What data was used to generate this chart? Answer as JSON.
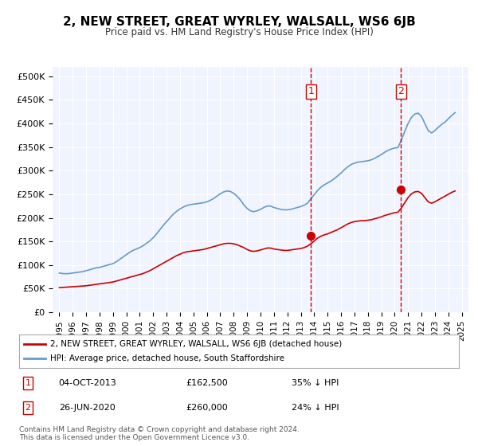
{
  "title": "2, NEW STREET, GREAT WYRLEY, WALSALL, WS6 6JB",
  "subtitle": "Price paid vs. HM Land Registry's House Price Index (HPI)",
  "legend_line1": "2, NEW STREET, GREAT WYRLEY, WALSALL, WS6 6JB (detached house)",
  "legend_line2": "HPI: Average price, detached house, South Staffordshire",
  "footer": "Contains HM Land Registry data © Crown copyright and database right 2024.\nThis data is licensed under the Open Government Licence v3.0.",
  "annotation1": {
    "label": "1",
    "date_str": "04-OCT-2013",
    "price": 162500,
    "note": "35% ↓ HPI",
    "x_year": 2013.75
  },
  "annotation2": {
    "label": "2",
    "date_str": "26-JUN-2020",
    "price": 260000,
    "note": "24% ↓ HPI",
    "x_year": 2020.48
  },
  "red_line_color": "#cc0000",
  "blue_line_color": "#6699cc",
  "vline_color": "#cc0000",
  "background_color": "#ffffff",
  "plot_bg_color": "#f0f4ff",
  "grid_color": "#ffffff",
  "ylim": [
    0,
    520000
  ],
  "xlim_start": 1994.5,
  "xlim_end": 2025.5,
  "yticks": [
    0,
    50000,
    100000,
    150000,
    200000,
    250000,
    300000,
    350000,
    400000,
    450000,
    500000
  ],
  "ytick_labels": [
    "£0",
    "£50K",
    "£100K",
    "£150K",
    "£200K",
    "£250K",
    "£300K",
    "£350K",
    "£400K",
    "£450K",
    "£500K"
  ],
  "xticks": [
    1995,
    1996,
    1997,
    1998,
    1999,
    2000,
    2001,
    2002,
    2003,
    2004,
    2005,
    2006,
    2007,
    2008,
    2009,
    2010,
    2011,
    2012,
    2013,
    2014,
    2015,
    2016,
    2017,
    2018,
    2019,
    2020,
    2021,
    2022,
    2023,
    2024,
    2025
  ],
  "hpi_years": [
    1995.0,
    1995.25,
    1995.5,
    1995.75,
    1996.0,
    1996.25,
    1996.5,
    1996.75,
    1997.0,
    1997.25,
    1997.5,
    1997.75,
    1998.0,
    1998.25,
    1998.5,
    1998.75,
    1999.0,
    1999.25,
    1999.5,
    1999.75,
    2000.0,
    2000.25,
    2000.5,
    2000.75,
    2001.0,
    2001.25,
    2001.5,
    2001.75,
    2002.0,
    2002.25,
    2002.5,
    2002.75,
    2003.0,
    2003.25,
    2003.5,
    2003.75,
    2004.0,
    2004.25,
    2004.5,
    2004.75,
    2005.0,
    2005.25,
    2005.5,
    2005.75,
    2006.0,
    2006.25,
    2006.5,
    2006.75,
    2007.0,
    2007.25,
    2007.5,
    2007.75,
    2008.0,
    2008.25,
    2008.5,
    2008.75,
    2009.0,
    2009.25,
    2009.5,
    2009.75,
    2010.0,
    2010.25,
    2010.5,
    2010.75,
    2011.0,
    2011.25,
    2011.5,
    2011.75,
    2012.0,
    2012.25,
    2012.5,
    2012.75,
    2013.0,
    2013.25,
    2013.5,
    2013.75,
    2014.0,
    2014.25,
    2014.5,
    2014.75,
    2015.0,
    2015.25,
    2015.5,
    2015.75,
    2016.0,
    2016.25,
    2016.5,
    2016.75,
    2017.0,
    2017.25,
    2017.5,
    2017.75,
    2018.0,
    2018.25,
    2018.5,
    2018.75,
    2019.0,
    2019.25,
    2019.5,
    2019.75,
    2020.0,
    2020.25,
    2020.5,
    2020.75,
    2021.0,
    2021.25,
    2021.5,
    2021.75,
    2022.0,
    2022.25,
    2022.5,
    2022.75,
    2023.0,
    2023.25,
    2023.5,
    2023.75,
    2024.0,
    2024.25,
    2024.5
  ],
  "hpi_values": [
    83000,
    82000,
    81500,
    82000,
    83000,
    84000,
    85000,
    86000,
    88000,
    90000,
    92000,
    94000,
    95000,
    97000,
    99000,
    101000,
    103000,
    107000,
    112000,
    117000,
    122000,
    127000,
    131000,
    134000,
    137000,
    141000,
    146000,
    151000,
    158000,
    166000,
    175000,
    184000,
    192000,
    200000,
    208000,
    214000,
    219000,
    223000,
    226000,
    228000,
    229000,
    230000,
    231000,
    232000,
    234000,
    237000,
    241000,
    246000,
    251000,
    255000,
    257000,
    256000,
    252000,
    246000,
    238000,
    228000,
    220000,
    215000,
    213000,
    215000,
    218000,
    222000,
    225000,
    225000,
    222000,
    220000,
    218000,
    217000,
    217000,
    218000,
    220000,
    222000,
    224000,
    227000,
    231000,
    240000,
    249000,
    258000,
    265000,
    270000,
    274000,
    278000,
    283000,
    289000,
    295000,
    302000,
    308000,
    313000,
    316000,
    318000,
    319000,
    320000,
    321000,
    323000,
    326000,
    330000,
    334000,
    339000,
    343000,
    346000,
    348000,
    349000,
    365000,
    383000,
    400000,
    413000,
    420000,
    422000,
    415000,
    400000,
    385000,
    380000,
    385000,
    392000,
    398000,
    403000,
    410000,
    417000,
    423000
  ],
  "red_years": [
    1995.0,
    1995.25,
    1995.5,
    1995.75,
    1996.0,
    1996.25,
    1996.5,
    1996.75,
    1997.0,
    1997.25,
    1997.5,
    1997.75,
    1998.0,
    1998.25,
    1998.5,
    1998.75,
    1999.0,
    1999.25,
    1999.5,
    1999.75,
    2000.0,
    2000.25,
    2000.5,
    2000.75,
    2001.0,
    2001.25,
    2001.5,
    2001.75,
    2002.0,
    2002.25,
    2002.5,
    2002.75,
    2003.0,
    2003.25,
    2003.5,
    2003.75,
    2004.0,
    2004.25,
    2004.5,
    2004.75,
    2005.0,
    2005.25,
    2005.5,
    2005.75,
    2006.0,
    2006.25,
    2006.5,
    2006.75,
    2007.0,
    2007.25,
    2007.5,
    2007.75,
    2008.0,
    2008.25,
    2008.5,
    2008.75,
    2009.0,
    2009.25,
    2009.5,
    2009.75,
    2010.0,
    2010.25,
    2010.5,
    2010.75,
    2011.0,
    2011.25,
    2011.5,
    2011.75,
    2012.0,
    2012.25,
    2012.5,
    2012.75,
    2013.0,
    2013.25,
    2013.5,
    2013.75,
    2014.0,
    2014.25,
    2014.5,
    2014.75,
    2015.0,
    2015.25,
    2015.5,
    2015.75,
    2016.0,
    2016.25,
    2016.5,
    2016.75,
    2017.0,
    2017.25,
    2017.5,
    2017.75,
    2018.0,
    2018.25,
    2018.5,
    2018.75,
    2019.0,
    2019.25,
    2019.5,
    2019.75,
    2020.0,
    2020.25,
    2020.5,
    2020.75,
    2021.0,
    2021.25,
    2021.5,
    2021.75,
    2022.0,
    2022.25,
    2022.5,
    2022.75,
    2023.0,
    2023.25,
    2023.5,
    2023.75,
    2024.0,
    2024.25,
    2024.5
  ],
  "red_values": [
    52000,
    52500,
    53000,
    53500,
    54000,
    54500,
    55000,
    55500,
    56000,
    57000,
    58000,
    59000,
    60000,
    61000,
    62000,
    63000,
    64000,
    66000,
    68000,
    70000,
    72000,
    74000,
    76000,
    78000,
    80000,
    82000,
    85000,
    88000,
    92000,
    96000,
    100000,
    104000,
    108000,
    112000,
    116000,
    120000,
    123000,
    126000,
    128000,
    129000,
    130000,
    131000,
    132000,
    133000,
    135000,
    137000,
    139000,
    141000,
    143000,
    145000,
    146000,
    146000,
    145000,
    143000,
    140000,
    137000,
    133000,
    130000,
    129000,
    130000,
    132000,
    134000,
    136000,
    136000,
    134000,
    133000,
    132000,
    131000,
    131000,
    132000,
    133000,
    134000,
    135000,
    137000,
    140000,
    145000,
    151000,
    157000,
    161000,
    164000,
    166000,
    169000,
    172000,
    175000,
    179000,
    183000,
    187000,
    190000,
    192000,
    193000,
    194000,
    194000,
    195000,
    196000,
    198000,
    200000,
    202000,
    205000,
    207000,
    209000,
    211000,
    212000,
    221000,
    232000,
    243000,
    251000,
    255000,
    256000,
    252000,
    243000,
    234000,
    231000,
    234000,
    238000,
    242000,
    246000,
    250000,
    254000,
    257000
  ]
}
